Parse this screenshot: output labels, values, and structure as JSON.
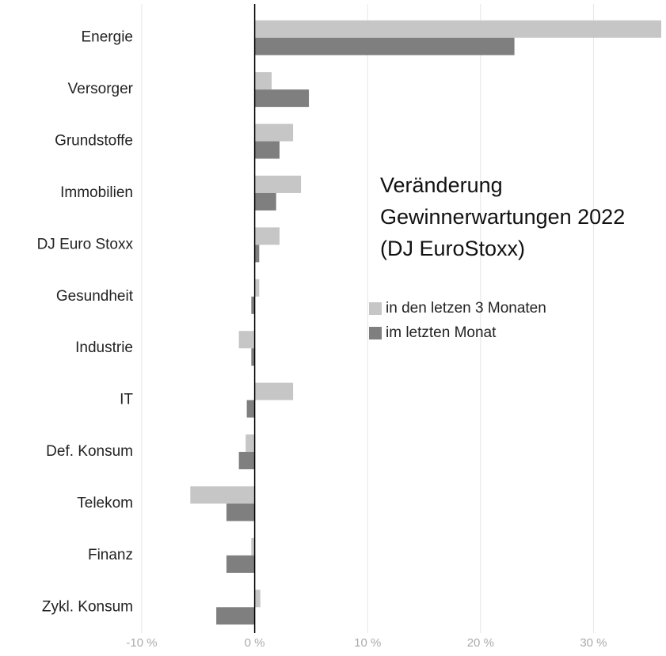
{
  "chart_data": {
    "type": "barh",
    "title": [
      "Veränderung",
      "Gewinnerwartungen 2022",
      "(DJ EuroStoxx)"
    ],
    "categories": [
      "Energie",
      "Versorger",
      "Grundstoffe",
      "Immobilien",
      "DJ Euro Stoxx",
      "Gesundheit",
      "Industrie",
      "IT",
      "Def. Konsum",
      "Telekom",
      "Finanz",
      "Zykl. Konsum"
    ],
    "series": [
      {
        "name": "in den letzen 3 Monaten",
        "color": "#c6c6c6",
        "values": [
          36,
          1.5,
          3.4,
          4.1,
          2.2,
          0.4,
          -1.4,
          3.4,
          -0.8,
          -5.7,
          -0.3,
          0.5
        ]
      },
      {
        "name": "im letzten Monat",
        "color": "#7f7f7f",
        "values": [
          23,
          4.8,
          2.2,
          1.9,
          0.4,
          -0.3,
          -0.3,
          -0.7,
          -1.4,
          -2.5,
          -2.5,
          -3.4
        ]
      }
    ],
    "xlim": [
      -10,
      36
    ],
    "xticks": [
      {
        "value": -10,
        "label": "-10 %"
      },
      {
        "value": 0,
        "label": "0 %"
      },
      {
        "value": 10,
        "label": "10 %"
      },
      {
        "value": 20,
        "label": "20 %"
      },
      {
        "value": 30,
        "label": "30 %"
      }
    ],
    "grid": true
  }
}
